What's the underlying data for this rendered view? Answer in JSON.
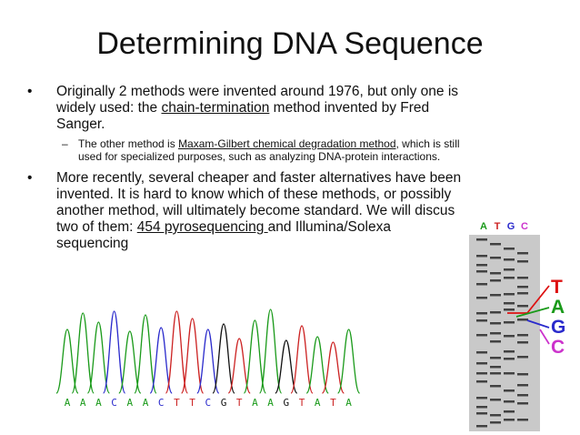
{
  "slide": {
    "title": "Determining DNA Sequence",
    "bullet1": {
      "text_a": "Originally 2 methods were invented around 1976, but only one is widely used: the ",
      "link": "chain-termination",
      "text_b": " method invented by Fred Sanger.",
      "sub": {
        "text_a": "The other method is ",
        "link": "Maxam-Gilbert chemical degradation method",
        "text_b": ", which is still used for specialized purposes, such as analyzing DNA-protein interactions."
      }
    },
    "bullet2": {
      "text_a": "More recently, several cheaper and faster alternatives have been invented.  It is hard to know which of these methods, or possibly another method, will ultimately become standard.  We will discus two of them:  ",
      "link": "454 pyrosequencing ",
      "text_b": "and Illumina/Solexa sequencing"
    }
  },
  "chromatogram": {
    "bases": [
      "A",
      "A",
      "A",
      "C",
      "A",
      "A",
      "C",
      "T",
      "T",
      "C",
      "G",
      "T",
      "A",
      "A",
      "G",
      "T",
      "A",
      "T",
      "A"
    ],
    "colors": {
      "A": "#1a9a1a",
      "C": "#2a2acc",
      "G": "#111111",
      "T": "#cc2222"
    }
  },
  "gel": {
    "lanes": [
      "A",
      "T",
      "G",
      "C"
    ],
    "lane_colors": {
      "A": "#1a9a1a",
      "T": "#cc2222",
      "G": "#2a2acc",
      "C": "#cc33cc"
    },
    "callout": [
      "T",
      "A",
      "G",
      "C"
    ],
    "callout_colors": [
      "#dd1111",
      "#1a9a1a",
      "#2a2acc",
      "#cc33cc"
    ]
  }
}
